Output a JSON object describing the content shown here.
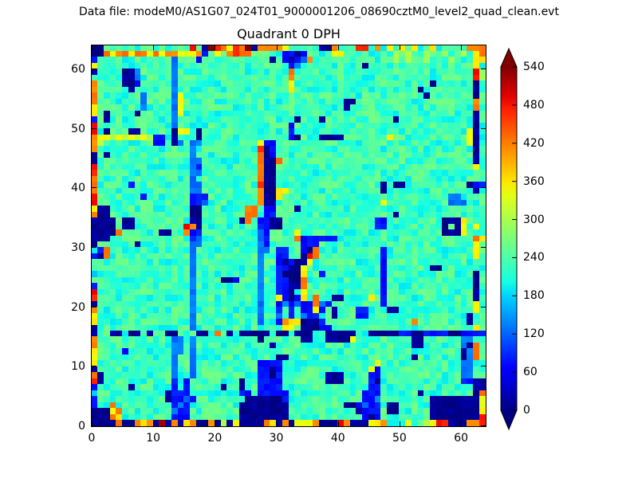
{
  "header": {
    "data_file": "Data file: modeM0/AS1G07_024T01_9000001206_08690cztM0_level2_quad_clean.evt"
  },
  "chart_data": {
    "type": "heatmap",
    "title": "Quadrant 0 DPH",
    "xlabel": "",
    "ylabel": "",
    "x_range": [
      0,
      64
    ],
    "y_range": [
      0,
      64
    ],
    "x_ticks": [
      0,
      10,
      20,
      30,
      40,
      50,
      60
    ],
    "y_ticks": [
      0,
      10,
      20,
      30,
      40,
      50,
      60
    ],
    "grid_on": false,
    "colormap": "jet",
    "colorbar": {
      "vmin": 0,
      "vmax": 540,
      "extend": "both",
      "ticks": [
        0,
        60,
        120,
        180,
        240,
        300,
        360,
        420,
        480,
        540
      ]
    },
    "colors": {
      "background": "#ffffff",
      "text": "#000000",
      "low": "#000091",
      "mid": "#3affbd",
      "high": "#8b0000"
    },
    "grid": {
      "note": "64x64 detector plane histogram, rows listed top-to-bottom (y=63 down to y=0), chars are count buckets",
      "encoding": {
        "0": 8,
        "1": 75,
        "2": 130,
        "3": 180,
        "4": 228,
        "5": 252,
        "6": 300,
        "7": 350,
        "8": 420,
        "9": 480,
        "a": 535
      },
      "noise": {
        "seed": 7,
        "background": 38,
        "feature": 13
      },
      "rows_top_to_bottom": [
        "0044444444444444940a98798a0888874444400844499484747474474444 4888",
        "00878878878788777814748988444441101444477444444446464464464 46478",
        "144444444444424441444444444440410128444444444444464644644464 4477",
        "7444444444444244444444444444444412444444444404444444444444444474",
        "0444400244444244444444444444444484444444444444444444444444444496",
        "4444400244444244444444444444444484444444444444444444444444444496",
        "8444400144444244444444444444444474444444444444444444444044444404",
        "8444440444444244444444444444444474444444444444444444404444444404",
        "8444444424444274444444444444444444444444444444444444440444444404",
        "8444444424444274444444444444444444444444400444444444444444444484",
        "7444444424444274444444444444444444444444404444444444444444444484",
        "7404444044444274444444444444444444444444444444444444444444444404",
        "1404444444444244444444444444444440444044444444444044444444444404",
        "9444444444444244444444444444444414444444444444444444444444444404",
        "9404440044444077404444444444444414444444444444444444444444444704",
        "8776767676114044404444444444444410444000044444447444444444444704",
        "8644444444114024224444444447114444444444444444444444444444444704",
        "8444444444444444244444444449014444444444444444444444444444444404",
        "0404444444444444244444444448014444444444444444444444444444444404",
        "0444444444444444224444444448008444444444444444444444444444444404",
        "9444444444444444214444444448004444444444444444444444444444444474",
        "9444444444444444224444444448004444444444444444444444444444444444",
        "8444444444444444244444444448004444444444444444444444444444444444",
        "8444441444444444224444444449004444444444444444404004444444444011",
        "8444444444444444224444444448007744444444444444404444444444444404",
        "9444444414444444111444444448007444444444444444444444444444224444",
        "9444444444444444112444444448004444444444444444474444444444222444",
        "7004444444444444004444444884114440444444444444444444444444444444",
        "8004444444444444004444444884114444444444444444444044444444444444",
        "0000400444444444004444440841100444444444444444114444444440007444",
        "0000400444444449804444444441100444444444444444114444444440407474",
        "0000844444400448114444444442144447444444444444444444444440007444",
        "0004444444444444124444444442144448111111444444444444444444444487",
        "0444444044444444224444444442144444111444444444444444444444444474",
        "4184444444444444244444444442241144108444444444414444444444444474",
        "1084444444444444244444444442441144098444444444414444444444444474",
        "4444444444444444244444444442441010074444444444414444444444444444",
        "4444444444444444244444444442441100744444444444414444444004444444",
        "3444444444444444244444444442441000744144444444414444444444444404",
        "4444444444444444244440014442441100844444444444414444444444444404",
        "1444444444444444244444444442441100844444444444414444444444444404",
        "9444444444444444244444444442441104744444444444414444444444444404",
        "9444444444444444244444444442447101748440044447414444444444444404",
        "0444444444444444244444444442441212118214444444414444444444444474",
        "8444444444444444244444444442441414117140444114440044444444444474",
        "7444444444444444244444444442442414211440444114444444444444444044",
        "7444444444444444244444444442441877000144444444444444844444444044",
        "0444444444444444244444444444444774000114444444444444444444444474",
        "0440040040440044400484040000040040004400000440000011001111001111",
        "8444444444444224244444444440444444004400007444444444004444442244",
        "8444444444444224244444444444404444444444444444444444004444442084",
        "7444414444444224244444444444444444444444444444444444444444440284",
        "7444444444444244244444444444440044444444444444444444044444440284",
        "7444444444444244244444444441111444444444444444744444444444442244",
        "0444444444444244244444444441101444444444444447144444444444442244",
        "8044444444444244244444444441101444444400044441144444444444442244",
        "9044444444444141444444440441111444444400044441044444444444441100",
        "1444440444444141444440440441111444444444444441144444444444444400",
        "3444444444440111444444441141111144444444444411144444404444444408",
        "1444444444440112144444444000000144444444444411244444444000000007",
        "1448444444444121444444440000000044444444400121140044444000000007",
        "0007844444444211444444440000000044444444444011140044444000000007",
        "0008744444444111444444440000000044444444444410144444444000000009",
        "00008008780a08078008060700008708077780009800077844474467990 00889"
      ]
    }
  }
}
